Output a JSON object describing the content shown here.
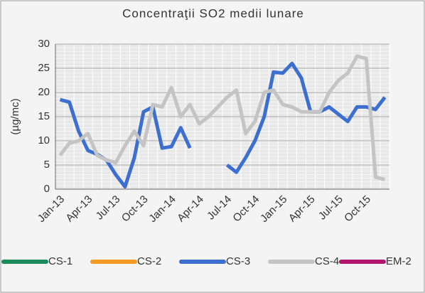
{
  "chart_data": {
    "type": "line",
    "title": "Concentraţii SO2  medii lunare",
    "y_label": "(µg/mc)",
    "categories": [
      "Jan-13",
      null,
      null,
      "Apr-13",
      null,
      null,
      "Jul-13",
      null,
      null,
      "Oct-13",
      null,
      null,
      "Jan-14",
      null,
      null,
      "Apr-14",
      null,
      null,
      "Jul-14",
      null,
      null,
      "Oct-14",
      null,
      null,
      "Jan-15",
      null,
      null,
      "Apr-15",
      null,
      null,
      "Jul-15",
      null,
      null,
      "Oct-15",
      null,
      null
    ],
    "series": [
      {
        "name": "CS-1",
        "color": "#1a8a5a",
        "values": [
          null,
          null,
          null,
          null,
          null,
          null,
          null,
          null,
          null,
          null,
          null,
          null,
          null,
          null,
          null,
          null,
          null,
          null,
          null,
          null,
          null,
          null,
          null,
          null,
          null,
          null,
          null,
          null,
          null,
          null,
          null,
          null,
          null,
          null,
          null,
          null
        ]
      },
      {
        "name": "CS-2",
        "color": "#f59a23",
        "values": [
          null,
          null,
          null,
          null,
          null,
          null,
          null,
          null,
          null,
          null,
          null,
          null,
          null,
          null,
          null,
          null,
          null,
          null,
          null,
          null,
          null,
          null,
          null,
          null,
          null,
          null,
          null,
          null,
          null,
          null,
          null,
          null,
          null,
          null,
          null,
          null
        ]
      },
      {
        "name": "CS-3",
        "color": "#3d6fd0",
        "values": [
          18.5,
          18,
          12,
          8,
          7.2,
          6,
          3,
          0.5,
          6.5,
          16,
          17,
          8.5,
          8.8,
          12.7,
          8.5,
          null,
          null,
          null,
          5,
          3.5,
          6.5,
          10,
          15,
          24.2,
          24,
          26,
          23,
          16,
          16,
          17,
          15.5,
          14,
          17,
          17,
          16.5,
          19
        ]
      },
      {
        "name": "CS-4",
        "color": "#c4c4c4",
        "values": [
          7,
          9.5,
          10,
          11.5,
          7,
          6,
          5.5,
          9,
          12,
          9,
          17.5,
          17,
          21,
          15,
          17.5,
          13.5,
          15,
          17,
          19,
          20.5,
          11.5,
          14,
          20,
          20.5,
          17.5,
          17,
          16,
          16,
          16,
          20,
          22.5,
          24,
          27.5,
          27,
          2.5,
          2
        ]
      },
      {
        "name": "EM-2",
        "color": "#b0186e",
        "values": [
          null,
          null,
          null,
          null,
          null,
          null,
          null,
          null,
          null,
          null,
          null,
          null,
          null,
          null,
          null,
          null,
          null,
          null,
          null,
          null,
          null,
          null,
          null,
          null,
          null,
          null,
          null,
          null,
          null,
          null,
          null,
          null,
          null,
          null,
          null,
          null
        ]
      }
    ],
    "ylim": [
      0,
      30
    ],
    "yticks": [
      0,
      5,
      10,
      15,
      20,
      25,
      30
    ],
    "grid": true
  }
}
